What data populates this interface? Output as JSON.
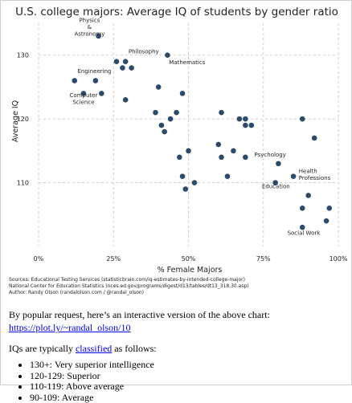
{
  "chart_data": {
    "type": "scatter",
    "title": "U.S. college majors: Average IQ of students by gender ratio",
    "xlabel": "% Female Majors",
    "ylabel": "Average IQ",
    "xlim": [
      0,
      100
    ],
    "ylim": [
      100,
      135
    ],
    "x_ticks": [
      {
        "value": 0,
        "label": "0%"
      },
      {
        "value": 25,
        "label": "25%"
      },
      {
        "value": 50,
        "label": "50%"
      },
      {
        "value": 75,
        "label": "75%"
      },
      {
        "value": 100,
        "label": "100%"
      }
    ],
    "y_ticks": [
      {
        "value": 110,
        "label": "110"
      },
      {
        "value": 120,
        "label": "120"
      },
      {
        "value": 130,
        "label": "130"
      }
    ],
    "grid": true,
    "marker_color": "#2d4a6b",
    "points": [
      {
        "x": 20,
        "y": 133
      },
      {
        "x": 26,
        "y": 129
      },
      {
        "x": 29,
        "y": 129
      },
      {
        "x": 28,
        "y": 128
      },
      {
        "x": 31,
        "y": 128
      },
      {
        "x": 43,
        "y": 130
      },
      {
        "x": 12,
        "y": 126
      },
      {
        "x": 19,
        "y": 126
      },
      {
        "x": 15,
        "y": 124
      },
      {
        "x": 21,
        "y": 124
      },
      {
        "x": 29,
        "y": 123
      },
      {
        "x": 40,
        "y": 125
      },
      {
        "x": 48,
        "y": 124
      },
      {
        "x": 39,
        "y": 121
      },
      {
        "x": 46,
        "y": 121
      },
      {
        "x": 44,
        "y": 120
      },
      {
        "x": 41,
        "y": 119
      },
      {
        "x": 42,
        "y": 118
      },
      {
        "x": 61,
        "y": 121
      },
      {
        "x": 67,
        "y": 120
      },
      {
        "x": 69,
        "y": 120
      },
      {
        "x": 69,
        "y": 119
      },
      {
        "x": 71,
        "y": 119
      },
      {
        "x": 88,
        "y": 120
      },
      {
        "x": 92,
        "y": 117
      },
      {
        "x": 60,
        "y": 116
      },
      {
        "x": 65,
        "y": 115
      },
      {
        "x": 61,
        "y": 114
      },
      {
        "x": 69,
        "y": 114
      },
      {
        "x": 80,
        "y": 113
      },
      {
        "x": 50,
        "y": 115
      },
      {
        "x": 47,
        "y": 114
      },
      {
        "x": 48,
        "y": 111
      },
      {
        "x": 52,
        "y": 110
      },
      {
        "x": 49,
        "y": 109
      },
      {
        "x": 63,
        "y": 111
      },
      {
        "x": 79,
        "y": 110
      },
      {
        "x": 85,
        "y": 111
      },
      {
        "x": 90,
        "y": 108
      },
      {
        "x": 88,
        "y": 106
      },
      {
        "x": 97,
        "y": 106
      },
      {
        "x": 96,
        "y": 104
      },
      {
        "x": 88,
        "y": 103
      }
    ],
    "annotations": [
      {
        "text": "Physics\n&\nAstronomy",
        "x": 17,
        "y": 135.2,
        "anchor": "middle"
      },
      {
        "text": "Philosophy",
        "x": 30,
        "y": 130.3,
        "anchor": "start"
      },
      {
        "text": "Mathematics",
        "x": 43.5,
        "y": 128.6,
        "anchor": "start"
      },
      {
        "text": "Engineering",
        "x": 13,
        "y": 127.2,
        "anchor": "start"
      },
      {
        "text": "Computer\nScience",
        "x": 15,
        "y": 123.4,
        "anchor": "middle"
      },
      {
        "text": "Psychology",
        "x": 72,
        "y": 114.1,
        "anchor": "start"
      },
      {
        "text": "Health\nProfessions",
        "x": 86.8,
        "y": 111.5,
        "anchor": "start"
      },
      {
        "text": "Education",
        "x": 74.5,
        "y": 109.1,
        "anchor": "start"
      },
      {
        "text": "Social Work",
        "x": 83,
        "y": 101.8,
        "anchor": "start"
      }
    ]
  },
  "sources": [
    "Sources: Educational Testing Services (statisticbrain.com/iq-estimates-by-intended-college-major)",
    "National Center for Education Statistics (nces.ed.gov/programs/digest/d13/tables/dt13_318.30.asp)",
    "Author: Randy Olson (randalolson.com / @randal_olson)"
  ],
  "post": {
    "intro": "By popular request, here’s an interactive version of the above chart: ",
    "plotly_link": "https://plot.ly/~randal_olson/10",
    "iq_intro_before": "IQs are typically ",
    "classified_link": "classified",
    "iq_intro_after": " as follows:",
    "iq_classes": [
      "130+: Very superior intelligence",
      "120-129: Superior",
      "110-119: Above average",
      "90-109: Average"
    ]
  }
}
